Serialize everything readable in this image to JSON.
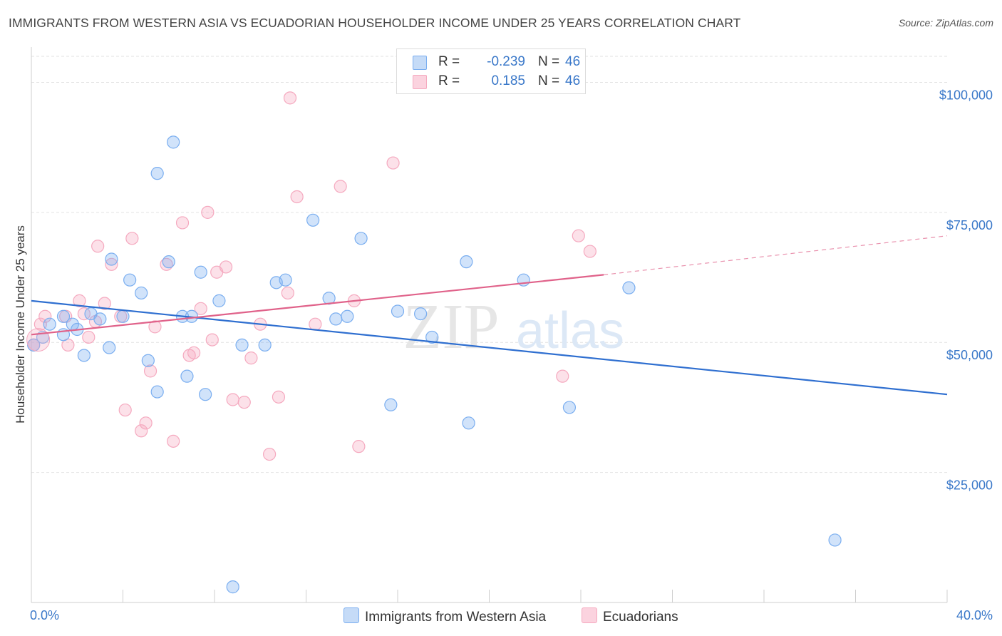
{
  "title": "IMMIGRANTS FROM WESTERN ASIA VS ECUADORIAN HOUSEHOLDER INCOME UNDER 25 YEARS CORRELATION CHART",
  "source": "Source: ZipAtlas.com",
  "watermark": {
    "zip": "ZIP",
    "atlas": "atlas"
  },
  "legend": [
    {
      "r_label": "R =",
      "r_value": "-0.239",
      "n_label": "N =",
      "n_value": "46"
    },
    {
      "r_label": "R =",
      "r_value": "0.185",
      "n_label": "N =",
      "n_value": "46"
    }
  ],
  "chart_data": {
    "type": "scatter",
    "ylabel": "Householder Income Under 25 years",
    "xlabel": "",
    "xlim": [
      0,
      40
    ],
    "ylim": [
      0,
      105000
    ],
    "x_tick_labels": {
      "min": "0.0%",
      "max": "40.0%"
    },
    "y_ticks": [
      {
        "value": 25000,
        "label": "$25,000"
      },
      {
        "value": 50000,
        "label": "$50,000"
      },
      {
        "value": 75000,
        "label": "$75,000"
      },
      {
        "value": 100000,
        "label": "$100,000"
      }
    ],
    "grid": true,
    "legend_position": "top-center",
    "series": [
      {
        "name": "Immigrants from Western Asia",
        "color": "#7aaef0",
        "line_color": "#2f6fd0",
        "trend": {
          "x": [
            0,
            40
          ],
          "y": [
            58000,
            40000
          ]
        },
        "points": [
          [
            0.5,
            51000
          ],
          [
            0.8,
            53500
          ],
          [
            1.4,
            51500
          ],
          [
            1.4,
            55000
          ],
          [
            1.8,
            53500
          ],
          [
            2.0,
            52500
          ],
          [
            2.3,
            47500
          ],
          [
            2.6,
            55500
          ],
          [
            3.0,
            54500
          ],
          [
            3.4,
            49000
          ],
          [
            3.5,
            66000
          ],
          [
            4.0,
            55000
          ],
          [
            4.3,
            62000
          ],
          [
            4.8,
            59500
          ],
          [
            5.1,
            46500
          ],
          [
            5.5,
            40500
          ],
          [
            5.5,
            82500
          ],
          [
            6.0,
            65500
          ],
          [
            6.2,
            88500
          ],
          [
            6.6,
            55000
          ],
          [
            6.8,
            43500
          ],
          [
            7.0,
            55000
          ],
          [
            7.4,
            63500
          ],
          [
            7.6,
            40000
          ],
          [
            8.2,
            58000
          ],
          [
            8.8,
            3000
          ],
          [
            9.2,
            49500
          ],
          [
            10.2,
            49500
          ],
          [
            10.7,
            61500
          ],
          [
            11.1,
            62000
          ],
          [
            12.3,
            73500
          ],
          [
            13.0,
            58500
          ],
          [
            13.3,
            54500
          ],
          [
            13.8,
            55000
          ],
          [
            14.4,
            70000
          ],
          [
            15.7,
            38000
          ],
          [
            16.0,
            56000
          ],
          [
            17.0,
            55500
          ],
          [
            17.5,
            51000
          ],
          [
            19.0,
            65500
          ],
          [
            19.1,
            34500
          ],
          [
            21.5,
            62000
          ],
          [
            23.5,
            37500
          ],
          [
            26.1,
            60500
          ],
          [
            35.1,
            12000
          ],
          [
            0.1,
            49500
          ]
        ]
      },
      {
        "name": "Ecuadorians",
        "color": "#f5a9bf",
        "line_color": "#e0628a",
        "trend": {
          "x": [
            0,
            25
          ],
          "y": [
            51500,
            63000
          ]
        },
        "trend_extension": {
          "x": [
            25,
            40
          ],
          "y": [
            63000,
            70500
          ]
        },
        "points": [
          [
            0.1,
            49500
          ],
          [
            0.6,
            55000
          ],
          [
            1.5,
            55000
          ],
          [
            1.6,
            49500
          ],
          [
            2.1,
            58000
          ],
          [
            2.3,
            55500
          ],
          [
            2.5,
            51000
          ],
          [
            2.9,
            68500
          ],
          [
            3.2,
            57500
          ],
          [
            3.5,
            65000
          ],
          [
            3.9,
            55000
          ],
          [
            4.1,
            37000
          ],
          [
            4.4,
            70000
          ],
          [
            4.8,
            33000
          ],
          [
            5.0,
            34500
          ],
          [
            5.2,
            44500
          ],
          [
            5.4,
            53000
          ],
          [
            5.9,
            65000
          ],
          [
            6.2,
            31000
          ],
          [
            6.6,
            73000
          ],
          [
            6.9,
            47500
          ],
          [
            7.1,
            48000
          ],
          [
            7.4,
            56500
          ],
          [
            7.7,
            75000
          ],
          [
            7.9,
            50500
          ],
          [
            8.1,
            63500
          ],
          [
            8.5,
            64500
          ],
          [
            8.8,
            39000
          ],
          [
            9.3,
            38500
          ],
          [
            9.6,
            47000
          ],
          [
            10.0,
            53500
          ],
          [
            10.4,
            28500
          ],
          [
            10.8,
            39500
          ],
          [
            11.2,
            59500
          ],
          [
            11.3,
            97000
          ],
          [
            11.6,
            78000
          ],
          [
            12.4,
            53500
          ],
          [
            13.5,
            80000
          ],
          [
            14.1,
            58000
          ],
          [
            14.3,
            30000
          ],
          [
            15.8,
            84500
          ],
          [
            23.2,
            43500
          ],
          [
            23.9,
            70500
          ],
          [
            24.4,
            67500
          ],
          [
            0.4,
            53500
          ],
          [
            2.8,
            54000
          ]
        ]
      }
    ]
  }
}
